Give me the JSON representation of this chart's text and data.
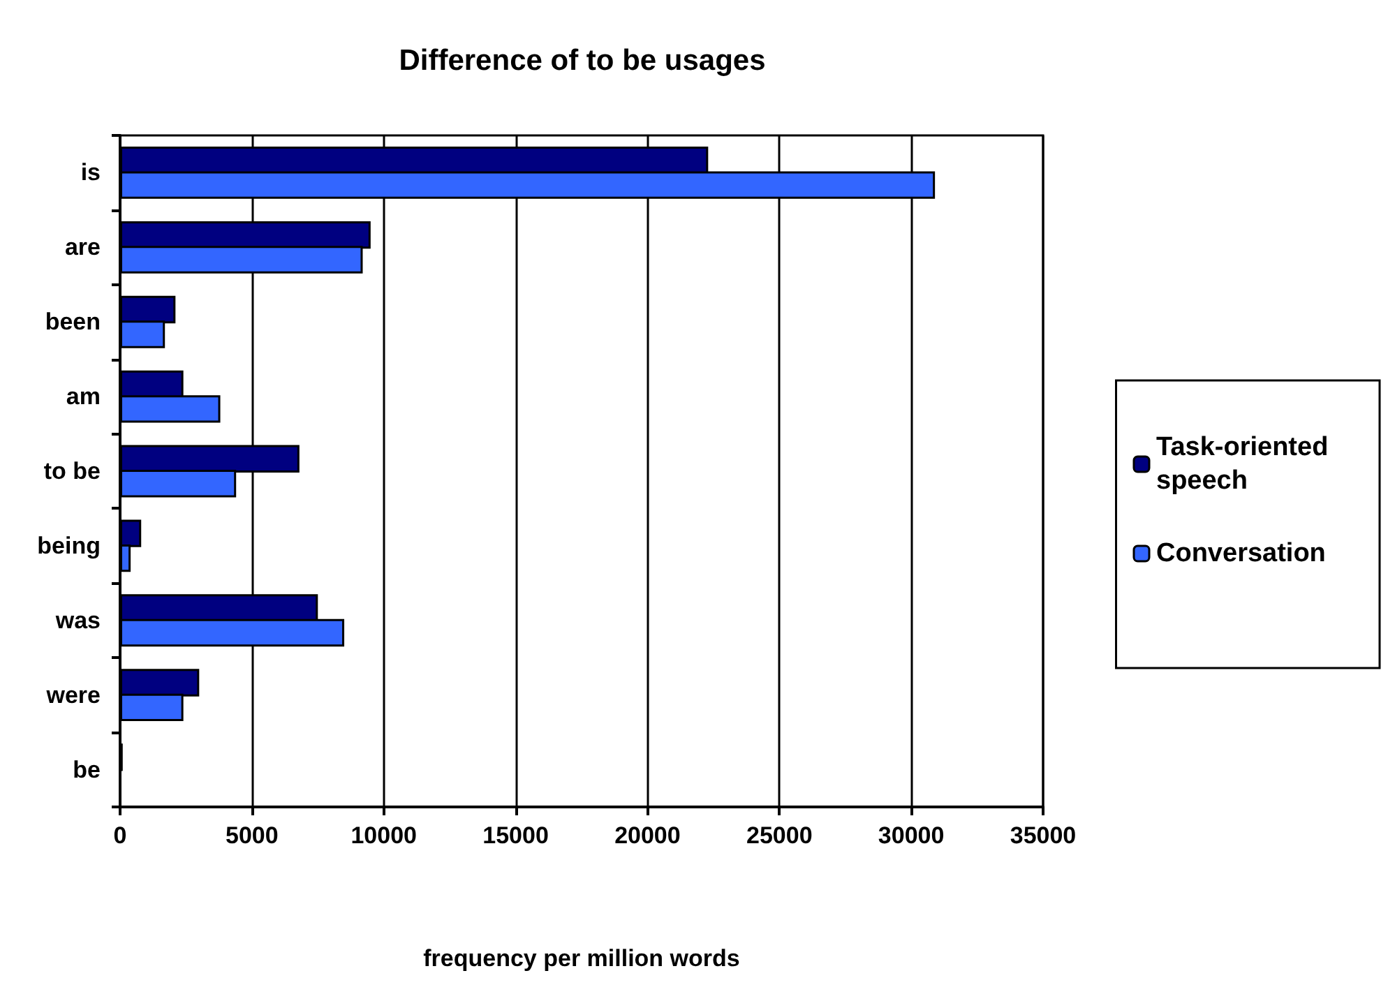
{
  "chart_data": {
    "type": "bar",
    "orientation": "horizontal",
    "title": "Difference of to be usages",
    "xlabel": "frequency per million words",
    "categories": [
      "is",
      "are",
      "been",
      "am",
      "to be",
      "being",
      "was",
      "were",
      "be"
    ],
    "series": [
      {
        "name": "Task-oriented speech",
        "color": "#000080",
        "values": [
          22300,
          9500,
          2100,
          2400,
          6800,
          800,
          7500,
          3000,
          100
        ]
      },
      {
        "name": "Conversation",
        "color": "#3366ff",
        "values": [
          30900,
          9200,
          1700,
          3800,
          4400,
          400,
          8500,
          2400,
          null
        ]
      }
    ],
    "xlim": [
      0,
      35000
    ],
    "xticks": [
      0,
      5000,
      10000,
      15000,
      20000,
      25000,
      30000,
      35000
    ],
    "grid": "x",
    "legend": "right"
  }
}
